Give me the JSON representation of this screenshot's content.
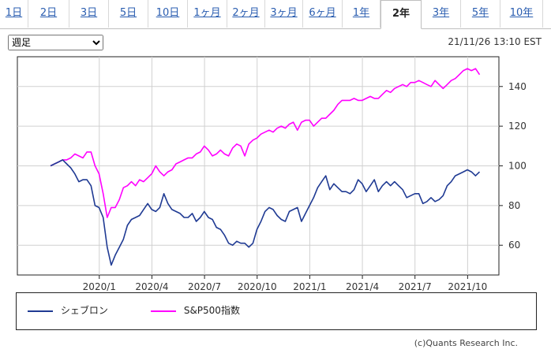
{
  "tabs": [
    {
      "label": "1日"
    },
    {
      "label": "2日"
    },
    {
      "label": "3日"
    },
    {
      "label": "5日"
    },
    {
      "label": "10日"
    },
    {
      "label": "1ヶ月"
    },
    {
      "label": "2ヶ月"
    },
    {
      "label": "3ヶ月"
    },
    {
      "label": "6ヶ月"
    },
    {
      "label": "1年"
    },
    {
      "label": "2年",
      "active": true
    },
    {
      "label": "3年"
    },
    {
      "label": "5年"
    },
    {
      "label": "10年"
    }
  ],
  "period_select": {
    "value": "週足"
  },
  "timestamp": "21/11/26 13:10 EST",
  "legend": [
    {
      "name": "シェブロン",
      "color": "#1f3a93"
    },
    {
      "name": "S&P500指数",
      "color": "#ff00ff"
    }
  ],
  "copyright": "(c)Quants Research Inc.",
  "chart_data": {
    "type": "line",
    "x_tick_labels": [
      "2020/1",
      "2020/4",
      "2020/7",
      "2020/10",
      "2021/1",
      "2021/4",
      "2021/7",
      "2021/10"
    ],
    "y_tick_labels": [
      "60",
      "80",
      "100",
      "120",
      "140"
    ],
    "ylim": [
      45,
      155
    ],
    "series": [
      {
        "name": "シェブロン",
        "color": "#1f3a93",
        "points": [
          [
            0,
            100
          ],
          [
            1,
            101
          ],
          [
            2,
            102
          ],
          [
            3,
            103
          ],
          [
            4,
            101
          ],
          [
            5,
            99
          ],
          [
            6,
            96
          ],
          [
            7,
            92
          ],
          [
            8,
            93
          ],
          [
            9,
            93
          ],
          [
            10,
            90
          ],
          [
            11,
            80
          ],
          [
            12,
            79
          ],
          [
            13,
            74
          ],
          [
            14,
            59
          ],
          [
            15,
            50
          ],
          [
            16,
            55
          ],
          [
            17,
            59
          ],
          [
            18,
            63
          ],
          [
            19,
            70
          ],
          [
            20,
            73
          ],
          [
            21,
            74
          ],
          [
            22,
            75
          ],
          [
            23,
            78
          ],
          [
            24,
            81
          ],
          [
            25,
            78
          ],
          [
            26,
            77
          ],
          [
            27,
            79
          ],
          [
            28,
            86
          ],
          [
            29,
            81
          ],
          [
            30,
            78
          ],
          [
            31,
            77
          ],
          [
            32,
            76
          ],
          [
            33,
            74
          ],
          [
            34,
            74
          ],
          [
            35,
            76
          ],
          [
            36,
            72
          ],
          [
            37,
            74
          ],
          [
            38,
            77
          ],
          [
            39,
            74
          ],
          [
            40,
            73
          ],
          [
            41,
            69
          ],
          [
            42,
            68
          ],
          [
            43,
            65
          ],
          [
            44,
            61
          ],
          [
            45,
            60
          ],
          [
            46,
            62
          ],
          [
            47,
            61
          ],
          [
            48,
            61
          ],
          [
            49,
            59
          ],
          [
            50,
            61
          ],
          [
            51,
            68
          ],
          [
            52,
            72
          ],
          [
            53,
            77
          ],
          [
            54,
            79
          ],
          [
            55,
            78
          ],
          [
            56,
            75
          ],
          [
            57,
            73
          ],
          [
            58,
            72
          ],
          [
            59,
            77
          ],
          [
            60,
            78
          ],
          [
            61,
            79
          ],
          [
            62,
            72
          ],
          [
            63,
            76
          ],
          [
            64,
            80
          ],
          [
            65,
            84
          ],
          [
            66,
            89
          ],
          [
            67,
            92
          ],
          [
            68,
            95
          ],
          [
            69,
            88
          ],
          [
            70,
            91
          ],
          [
            71,
            89
          ],
          [
            72,
            87
          ],
          [
            73,
            87
          ],
          [
            74,
            86
          ],
          [
            75,
            88
          ],
          [
            76,
            93
          ],
          [
            77,
            91
          ],
          [
            78,
            87
          ],
          [
            79,
            90
          ],
          [
            80,
            93
          ],
          [
            81,
            87
          ],
          [
            82,
            90
          ],
          [
            83,
            92
          ],
          [
            84,
            90
          ],
          [
            85,
            92
          ],
          [
            86,
            90
          ],
          [
            87,
            88
          ],
          [
            88,
            84
          ],
          [
            89,
            85
          ],
          [
            90,
            86
          ],
          [
            91,
            86
          ],
          [
            92,
            81
          ],
          [
            93,
            82
          ],
          [
            94,
            84
          ],
          [
            95,
            82
          ],
          [
            96,
            83
          ],
          [
            97,
            85
          ],
          [
            98,
            90
          ],
          [
            99,
            92
          ],
          [
            100,
            95
          ],
          [
            101,
            96
          ],
          [
            102,
            97
          ],
          [
            103,
            98
          ],
          [
            104,
            97
          ],
          [
            105,
            95
          ],
          [
            106,
            97
          ]
        ]
      },
      {
        "name": "S&P500指数",
        "color": "#ff00ff",
        "points": [
          [
            0,
            100
          ],
          [
            1,
            101
          ],
          [
            2,
            102
          ],
          [
            3,
            103
          ],
          [
            4,
            103
          ],
          [
            5,
            104
          ],
          [
            6,
            106
          ],
          [
            7,
            105
          ],
          [
            8,
            104
          ],
          [
            9,
            107
          ],
          [
            10,
            107
          ],
          [
            11,
            100
          ],
          [
            12,
            96
          ],
          [
            13,
            86
          ],
          [
            14,
            74
          ],
          [
            15,
            79
          ],
          [
            16,
            79
          ],
          [
            17,
            83
          ],
          [
            18,
            89
          ],
          [
            19,
            90
          ],
          [
            20,
            92
          ],
          [
            21,
            90
          ],
          [
            22,
            93
          ],
          [
            23,
            92
          ],
          [
            24,
            94
          ],
          [
            25,
            96
          ],
          [
            26,
            100
          ],
          [
            27,
            97
          ],
          [
            28,
            95
          ],
          [
            29,
            97
          ],
          [
            30,
            98
          ],
          [
            31,
            101
          ],
          [
            32,
            102
          ],
          [
            33,
            103
          ],
          [
            34,
            104
          ],
          [
            35,
            104
          ],
          [
            36,
            106
          ],
          [
            37,
            107
          ],
          [
            38,
            110
          ],
          [
            39,
            108
          ],
          [
            40,
            105
          ],
          [
            41,
            106
          ],
          [
            42,
            108
          ],
          [
            43,
            106
          ],
          [
            44,
            105
          ],
          [
            45,
            109
          ],
          [
            46,
            111
          ],
          [
            47,
            110
          ],
          [
            48,
            105
          ],
          [
            49,
            111
          ],
          [
            50,
            113
          ],
          [
            51,
            114
          ],
          [
            52,
            116
          ],
          [
            53,
            117
          ],
          [
            54,
            118
          ],
          [
            55,
            117
          ],
          [
            56,
            119
          ],
          [
            57,
            120
          ],
          [
            58,
            119
          ],
          [
            59,
            121
          ],
          [
            60,
            122
          ],
          [
            61,
            118
          ],
          [
            62,
            122
          ],
          [
            63,
            123
          ],
          [
            64,
            123
          ],
          [
            65,
            120
          ],
          [
            66,
            122
          ],
          [
            67,
            124
          ],
          [
            68,
            124
          ],
          [
            69,
            126
          ],
          [
            70,
            128
          ],
          [
            71,
            131
          ],
          [
            72,
            133
          ],
          [
            73,
            133
          ],
          [
            74,
            133
          ],
          [
            75,
            134
          ],
          [
            76,
            133
          ],
          [
            77,
            133
          ],
          [
            78,
            134
          ],
          [
            79,
            135
          ],
          [
            80,
            134
          ],
          [
            81,
            134
          ],
          [
            82,
            136
          ],
          [
            83,
            138
          ],
          [
            84,
            137
          ],
          [
            85,
            139
          ],
          [
            86,
            140
          ],
          [
            87,
            141
          ],
          [
            88,
            140
          ],
          [
            89,
            142
          ],
          [
            90,
            142
          ],
          [
            91,
            143
          ],
          [
            92,
            142
          ],
          [
            93,
            141
          ],
          [
            94,
            140
          ],
          [
            95,
            143
          ],
          [
            96,
            141
          ],
          [
            97,
            139
          ],
          [
            98,
            141
          ],
          [
            99,
            143
          ],
          [
            100,
            144
          ],
          [
            101,
            146
          ],
          [
            102,
            148
          ],
          [
            103,
            149
          ],
          [
            104,
            148
          ],
          [
            105,
            149
          ],
          [
            106,
            146
          ]
        ]
      }
    ]
  }
}
